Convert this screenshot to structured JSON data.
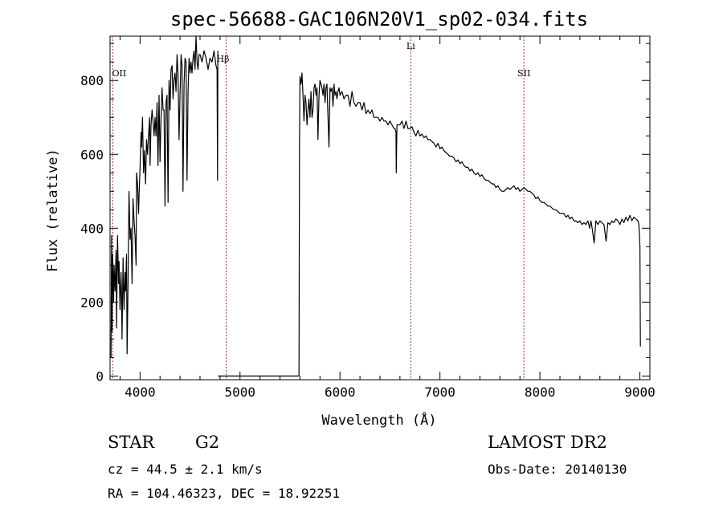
{
  "chart_data": {
    "type": "line",
    "title": "spec-56688-GAC106N20V1_sp02-034.fits",
    "xlabel": "Wavelength (Å)",
    "ylabel": "Flux (relative)",
    "xlim": [
      3700,
      9100
    ],
    "ylim": [
      -10,
      920
    ],
    "x_ticks": [
      4000,
      5000,
      6000,
      7000,
      8000,
      9000
    ],
    "y_ticks": [
      0,
      200,
      400,
      600,
      800
    ],
    "line_color": "#000000",
    "marker_color": "#b03030",
    "lines": [
      {
        "label": "OII",
        "wavelength": 3727
      },
      {
        "label": "Hβ",
        "wavelength": 4861
      },
      {
        "label": "Li",
        "wavelength": 6708
      },
      {
        "label": "SII",
        "wavelength": 7840
      }
    ],
    "series": [
      {
        "x": [
          3710,
          3715,
          3720,
          3725,
          3735,
          3740,
          3750,
          3760,
          3765,
          3775,
          3785,
          3790,
          3800,
          3810,
          3815,
          3820,
          3830,
          3840,
          3850,
          3855,
          3865,
          3870,
          3880,
          3890,
          3900,
          3910,
          3920,
          3930,
          3940,
          3950,
          3960,
          3965,
          3975,
          3985,
          3990,
          4000,
          4010,
          4015,
          4025,
          4035,
          4045,
          4055,
          4065,
          4075,
          4085,
          4095,
          4100,
          4110,
          4120,
          4130,
          4140,
          4150,
          4160,
          4170,
          4180,
          4190,
          4200,
          4210,
          4220,
          4230,
          4240,
          4250,
          4260,
          4270,
          4280,
          4290,
          4300,
          4310,
          4320,
          4330,
          4340,
          4350,
          4360,
          4370,
          4380,
          4390,
          4400,
          4410,
          4420,
          4430,
          4440,
          4450,
          4460,
          4470,
          4480,
          4490,
          4500,
          4510,
          4520,
          4530,
          4540,
          4550,
          4560,
          4570,
          4580,
          4590,
          4600,
          4620,
          4640,
          4660,
          4680,
          4700,
          4720,
          4740,
          4760,
          4770,
          4775,
          4778
        ],
        "y": [
          50,
          380,
          120,
          330,
          200,
          300,
          230,
          340,
          130,
          380,
          250,
          310,
          180,
          280,
          220,
          100,
          320,
          180,
          280,
          230,
          330,
          60,
          250,
          500,
          370,
          400,
          250,
          480,
          420,
          380,
          300,
          550,
          520,
          440,
          490,
          560,
          660,
          620,
          700,
          550,
          610,
          520,
          640,
          600,
          650,
          700,
          570,
          680,
          720,
          690,
          650,
          700,
          650,
          740,
          570,
          760,
          580,
          700,
          780,
          720,
          720,
          460,
          740,
          760,
          470,
          800,
          720,
          830,
          840,
          750,
          800,
          820,
          770,
          870,
          820,
          640,
          760,
          870,
          840,
          500,
          790,
          860,
          850,
          530,
          770,
          860,
          820,
          850,
          820,
          860,
          880,
          830,
          920,
          850,
          830,
          870,
          870,
          850,
          880,
          860,
          830,
          860,
          850,
          880,
          840,
          830,
          530,
          880
        ]
      },
      {
        "x": [
          4780,
          4785,
          4790,
          4800,
          4820,
          4850,
          4900,
          4950,
          5000,
          5100,
          5200,
          5300,
          5400,
          5500,
          5560,
          5580,
          5590
        ],
        "y": [
          0,
          0,
          0,
          0,
          0,
          0,
          0,
          0,
          0,
          0,
          0,
          0,
          0,
          0,
          0,
          0,
          0
        ]
      },
      {
        "x": [
          5590,
          5595,
          5600,
          5610,
          5620,
          5630,
          5640,
          5650,
          5660,
          5670,
          5680,
          5690,
          5700,
          5710,
          5720,
          5730,
          5740,
          5750,
          5760,
          5770,
          5780,
          5790,
          5800,
          5810,
          5820,
          5830,
          5840,
          5850,
          5860,
          5870,
          5880,
          5890,
          5900,
          5910,
          5920,
          5930,
          5940,
          5950,
          5960,
          5970,
          5980,
          5990,
          6000,
          6020,
          6040,
          6060,
          6080,
          6100,
          6120,
          6140,
          6160,
          6180,
          6200,
          6220,
          6240,
          6260,
          6280,
          6300,
          6320,
          6340,
          6360,
          6380,
          6400,
          6420,
          6440,
          6460,
          6480,
          6500,
          6520,
          6540,
          6550,
          6560,
          6563,
          6566,
          6570,
          6580,
          6600,
          6620,
          6640,
          6660,
          6680,
          6700,
          6720,
          6740,
          6760,
          6780,
          6800,
          6820,
          6840,
          6860,
          6880,
          6900,
          6920,
          6940,
          6960,
          6980,
          7000,
          7020,
          7040,
          7060,
          7080,
          7100,
          7120,
          7140,
          7160,
          7180,
          7200,
          7220,
          7240,
          7260,
          7280,
          7300,
          7320,
          7340,
          7360,
          7380,
          7400,
          7420,
          7440,
          7460,
          7480,
          7500,
          7520,
          7540,
          7560,
          7580,
          7600,
          7620,
          7640,
          7660,
          7680,
          7700,
          7720,
          7740,
          7760,
          7780,
          7800,
          7820,
          7840,
          7860,
          7880,
          7900,
          7920,
          7940,
          7960,
          7980,
          8000,
          8020,
          8040,
          8060,
          8080,
          8100,
          8120,
          8140,
          8160,
          8180,
          8200,
          8220,
          8240,
          8260,
          8280,
          8300,
          8320,
          8340,
          8360,
          8380,
          8400,
          8420,
          8440,
          8460,
          8480,
          8498,
          8510,
          8520,
          8542,
          8560,
          8580,
          8600,
          8620,
          8640,
          8662,
          8680,
          8700,
          8720,
          8740,
          8760,
          8780,
          8800,
          8820,
          8840,
          8860,
          8880,
          8900,
          8920,
          8940,
          8960,
          8980,
          8990,
          9000,
          9005
        ],
        "y": [
          0,
          620,
          810,
          790,
          820,
          760,
          690,
          760,
          740,
          680,
          720,
          750,
          700,
          770,
          700,
          720,
          780,
          790,
          760,
          780,
          640,
          760,
          800,
          790,
          780,
          760,
          790,
          740,
          780,
          790,
          700,
          620,
          780,
          770,
          780,
          730,
          790,
          760,
          770,
          750,
          770,
          780,
          760,
          770,
          750,
          760,
          760,
          730,
          770,
          740,
          730,
          740,
          740,
          720,
          740,
          710,
          720,
          710,
          720,
          700,
          700,
          700,
          690,
          700,
          690,
          690,
          680,
          690,
          680,
          670,
          670,
          660,
          550,
          620,
          680,
          680,
          680,
          690,
          670,
          690,
          670,
          670,
          675,
          660,
          650,
          665,
          650,
          655,
          645,
          650,
          640,
          640,
          635,
          630,
          620,
          630,
          615,
          620,
          610,
          605,
          600,
          595,
          595,
          590,
          580,
          585,
          575,
          580,
          570,
          565,
          565,
          555,
          560,
          550,
          545,
          550,
          540,
          545,
          535,
          530,
          530,
          525,
          520,
          520,
          510,
          515,
          505,
          500,
          500,
          505,
          510,
          505,
          510,
          515,
          505,
          510,
          500,
          505,
          510,
          505,
          500,
          500,
          495,
          490,
          480,
          485,
          475,
          470,
          470,
          465,
          460,
          460,
          455,
          450,
          450,
          445,
          440,
          440,
          440,
          430,
          435,
          425,
          430,
          420,
          420,
          415,
          420,
          410,
          415,
          410,
          420,
          400,
          420,
          405,
          360,
          420,
          410,
          420,
          415,
          410,
          365,
          415,
          410,
          420,
          415,
          425,
          420,
          410,
          425,
          415,
          430,
          420,
          435,
          420,
          430,
          425,
          420,
          410,
          350,
          80
        ]
      }
    ]
  },
  "labels": {
    "class": "STAR",
    "subclass": "G2",
    "survey": "LAMOST DR2",
    "cz": "cz = 44.5 ± 2.1 km/s",
    "obs_date": "Obs-Date: 20140130",
    "coords": "RA = 104.46323, DEC =  18.92251"
  }
}
